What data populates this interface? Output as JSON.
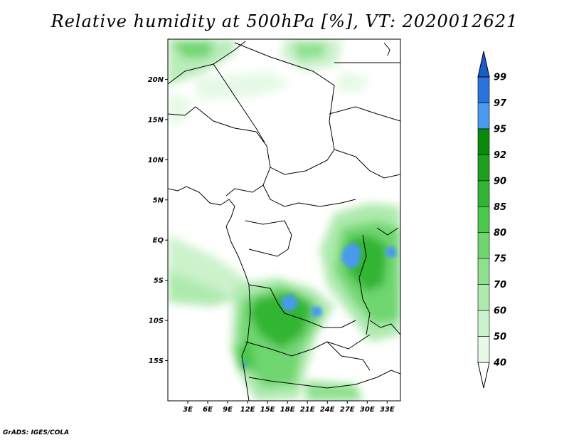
{
  "title": "Relative humidity at 500hPa [%], VT: 2020012621",
  "credit": "GrADS: IGES/COLA",
  "map": {
    "lon_range": [
      0,
      35
    ],
    "lat_range": [
      -20,
      25
    ],
    "lat_ticks": [
      {
        "value": 20,
        "label": "20N"
      },
      {
        "value": 15,
        "label": "15N"
      },
      {
        "value": 10,
        "label": "10N"
      },
      {
        "value": 5,
        "label": "5N"
      },
      {
        "value": 0,
        "label": "EQ"
      },
      {
        "value": -5,
        "label": "5S"
      },
      {
        "value": -10,
        "label": "10S"
      },
      {
        "value": -15,
        "label": "15S"
      }
    ],
    "lon_ticks": [
      {
        "value": 3,
        "label": "3E"
      },
      {
        "value": 6,
        "label": "6E"
      },
      {
        "value": 9,
        "label": "9E"
      },
      {
        "value": 12,
        "label": "12E"
      },
      {
        "value": 15,
        "label": "15E"
      },
      {
        "value": 18,
        "label": "18E"
      },
      {
        "value": 21,
        "label": "21E"
      },
      {
        "value": 24,
        "label": "24E"
      },
      {
        "value": 27,
        "label": "27E"
      },
      {
        "value": 30,
        "label": "30E"
      },
      {
        "value": 33,
        "label": "33E"
      }
    ]
  },
  "colorbar": {
    "levels": [
      "40",
      "50",
      "60",
      "70",
      "75",
      "80",
      "85",
      "90",
      "92",
      "95",
      "97",
      "99"
    ],
    "colors": [
      "#ffffff",
      "#e6f9e6",
      "#ccf2cc",
      "#aeeaae",
      "#8fe08f",
      "#6fd66f",
      "#4cc84c",
      "#33b533",
      "#1ea01e",
      "#0a8a0a",
      "#4a9aee",
      "#2a72dc",
      "#1a5cc8"
    ]
  }
}
